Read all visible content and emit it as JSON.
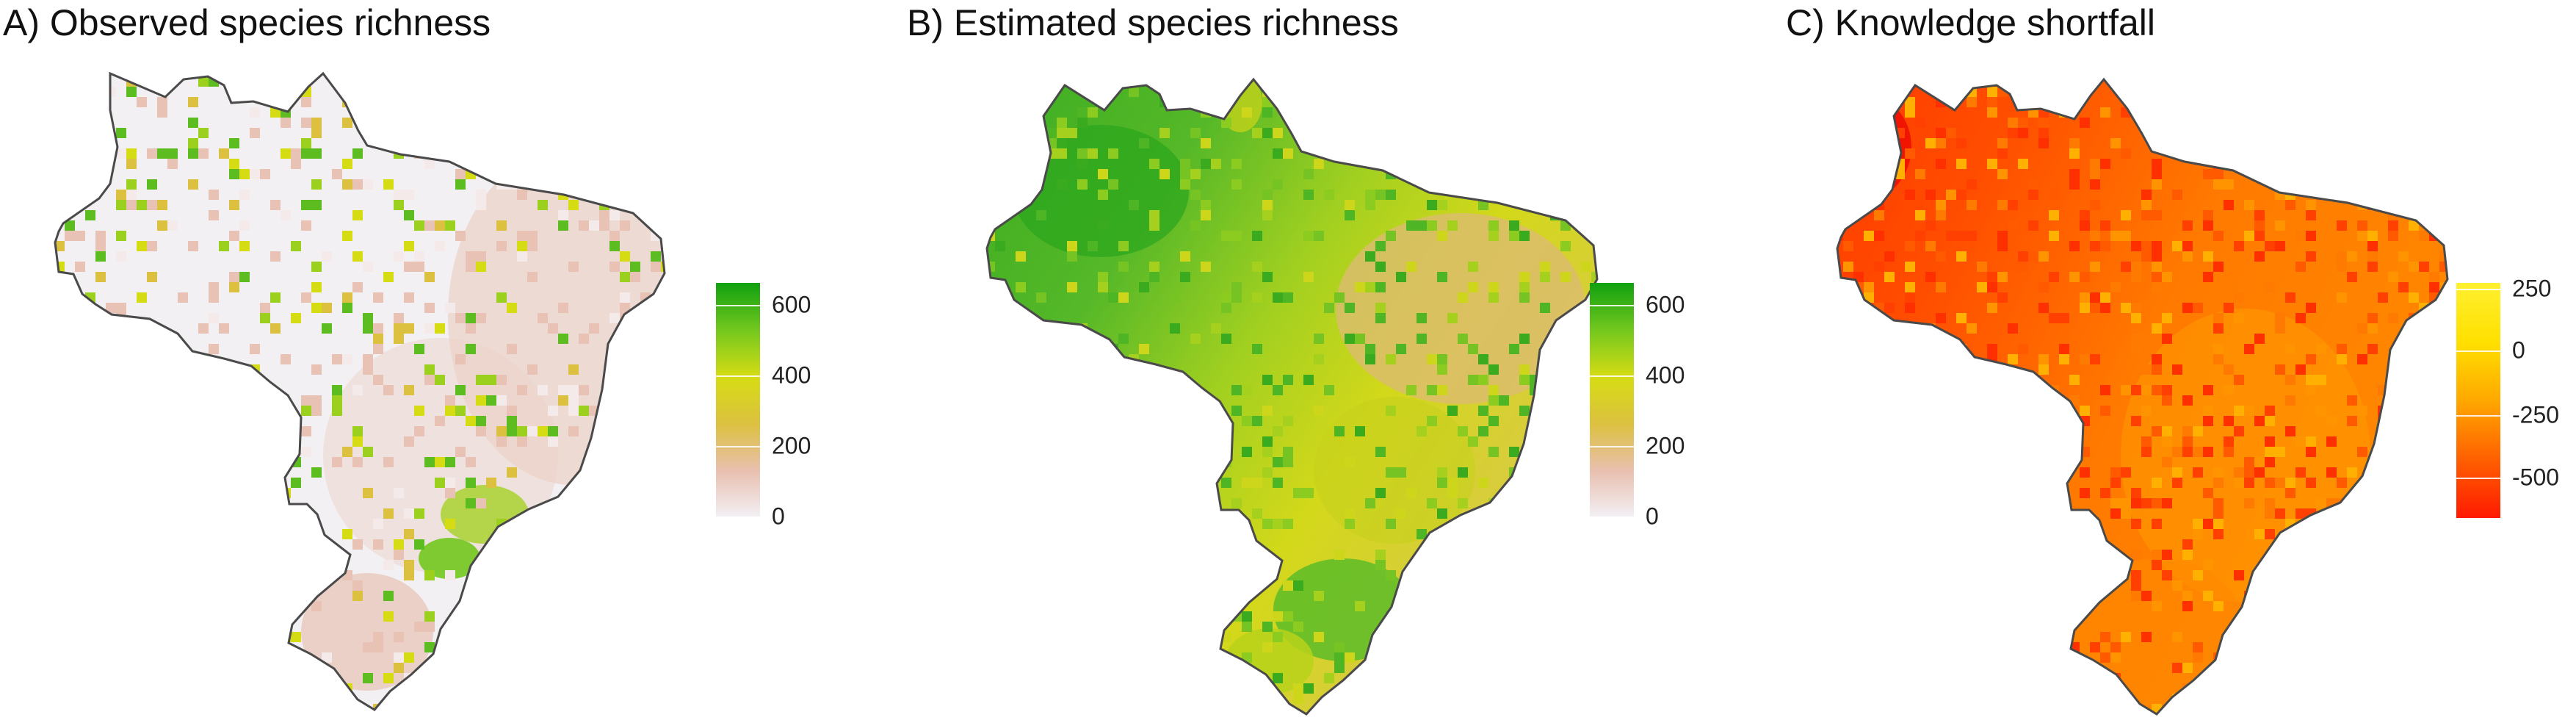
{
  "panels": [
    {
      "id": "observed",
      "title": "A) Observed species richness",
      "legend_ticks": [
        "600",
        "400",
        "200",
        "0"
      ],
      "legend_tick_values": [
        600,
        400,
        200,
        0
      ],
      "legend_range": [
        0,
        680
      ],
      "legend_colors": [
        "#f3f1f6",
        "#e9c0b0",
        "#dcc140",
        "#d6dc14",
        "#73c81e",
        "#10a010"
      ],
      "base_color": "#f2f0f2"
    },
    {
      "id": "estimated",
      "title": "B) Estimated species richness",
      "legend_ticks": [
        "600",
        "400",
        "200",
        "0"
      ],
      "legend_tick_values": [
        600,
        400,
        200,
        0
      ],
      "legend_range": [
        0,
        680
      ],
      "legend_colors": [
        "#f3f1f6",
        "#e9c0b0",
        "#dcc140",
        "#d6dc14",
        "#73c81e",
        "#10a010"
      ],
      "base_color": "#5fbf2a"
    },
    {
      "id": "shortfall",
      "title": "C) Knowledge shortfall",
      "legend_ticks": [
        "250",
        "0",
        "-250",
        "-500"
      ],
      "legend_tick_values": [
        250,
        0,
        -250,
        -500
      ],
      "legend_range": [
        -630,
        280
      ],
      "legend_colors": [
        "#ff1a00",
        "#ff6000",
        "#ffa800",
        "#ffe000",
        "#fff030"
      ],
      "base_color": "#ff6a00"
    }
  ]
}
